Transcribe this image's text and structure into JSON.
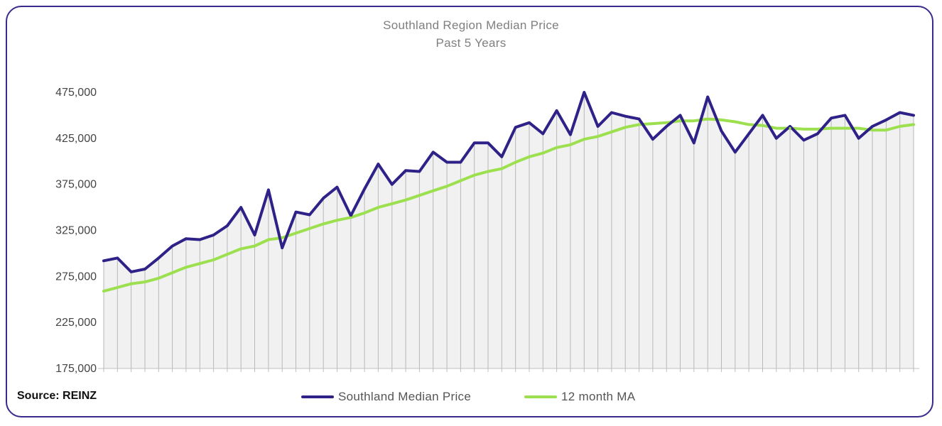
{
  "title": "Southland Region Median Price",
  "subtitle": "Past 5 Years",
  "source": "Source: REINZ",
  "colors": {
    "median": "#2e2288",
    "ma": "#9de04f",
    "frame": "#3a2a8c",
    "area": "#e6e6e6"
  },
  "legend": [
    {
      "label": "Southland Median Price",
      "color": "#2e2288"
    },
    {
      "label": "12 month MA",
      "color": "#9de04f"
    }
  ],
  "chart_data": {
    "type": "line",
    "title": "Southland Region Median Price",
    "subtitle": "Past 5 Years",
    "ylim": [
      175000,
      475000
    ],
    "yticks": [
      "475,000",
      "425,000",
      "375,000",
      "325,000",
      "275,000",
      "225,000",
      "175,000"
    ],
    "ytick_values": [
      475000,
      425000,
      375000,
      325000,
      275000,
      225000,
      175000
    ],
    "grid": false,
    "legend_position": "bottom",
    "series": [
      {
        "name": "Southland Median Price",
        "values": [
          292000,
          295000,
          280000,
          283000,
          295000,
          308000,
          316000,
          315000,
          320000,
          330000,
          350000,
          320000,
          369000,
          306000,
          345000,
          342000,
          360000,
          372000,
          341000,
          370000,
          397000,
          375000,
          390000,
          389000,
          410000,
          399000,
          399000,
          420000,
          420000,
          405000,
          437000,
          442000,
          430000,
          455000,
          429000,
          475000,
          438000,
          453000,
          449000,
          446000,
          424000,
          438000,
          450000,
          420000,
          470000,
          433000,
          410000,
          430000,
          450000,
          425000,
          438000,
          423000,
          430000,
          447000,
          450000,
          425000,
          438000,
          445000,
          453000,
          450000
        ]
      },
      {
        "name": "12 month MA",
        "values": [
          259000,
          263000,
          267000,
          269000,
          273000,
          279000,
          285000,
          289000,
          293000,
          299000,
          305000,
          308000,
          315000,
          317000,
          322000,
          327000,
          332000,
          336000,
          339000,
          344000,
          350000,
          354000,
          358000,
          363000,
          368000,
          373000,
          379000,
          385000,
          389000,
          392000,
          399000,
          405000,
          409000,
          415000,
          418000,
          424000,
          427000,
          432000,
          437000,
          440000,
          441000,
          442000,
          444000,
          444000,
          446000,
          445000,
          443000,
          440000,
          439000,
          436000,
          436000,
          435000,
          435000,
          436000,
          436000,
          436000,
          434000,
          434000,
          438000,
          440000
        ]
      }
    ]
  }
}
